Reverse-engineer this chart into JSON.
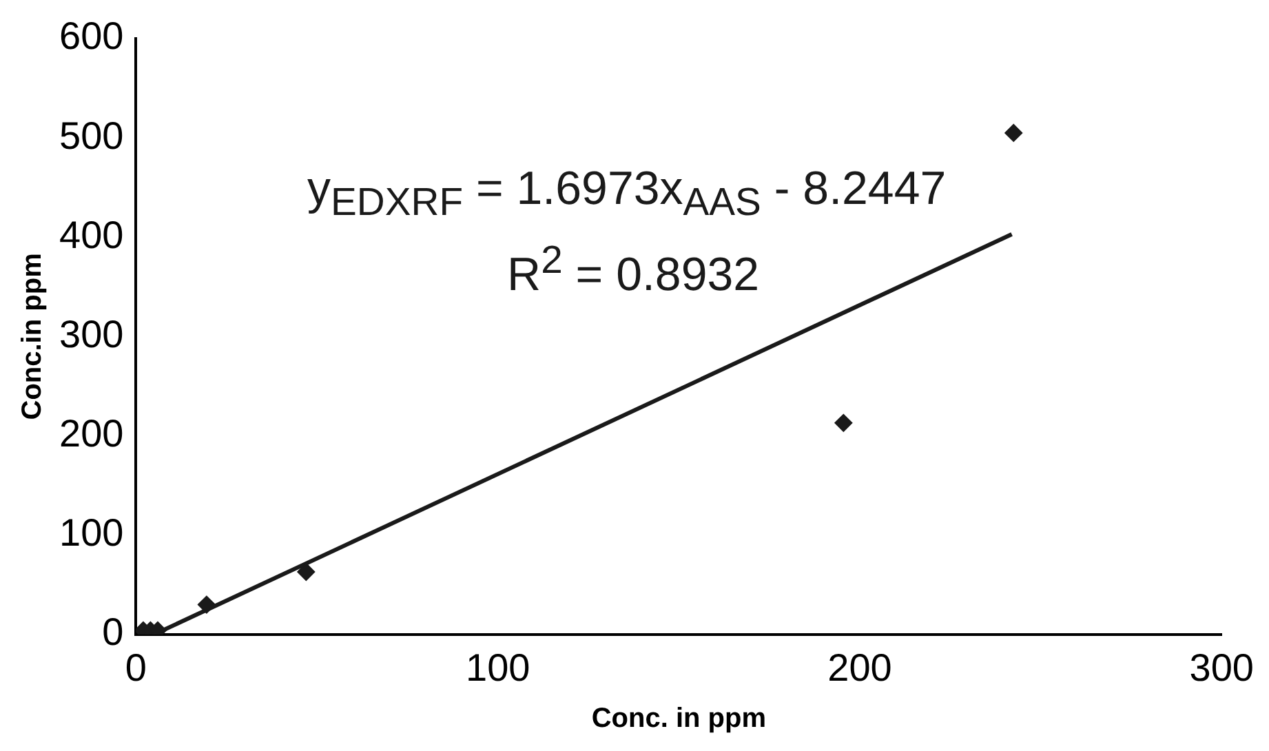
{
  "chart_data": {
    "type": "scatter",
    "xlabel": "Conc. in ppm",
    "ylabel": "Conc.in ppm",
    "xlim": [
      0,
      300
    ],
    "xticks": [
      0,
      100,
      200,
      300
    ],
    "ylim": [
      0,
      600
    ],
    "yticks": [
      0,
      100,
      200,
      300,
      400,
      500,
      600
    ],
    "grid": false,
    "legend": false,
    "marker": "diamond",
    "annotations": [
      "y$_{EDXRF}$ = 1.6973x$_{AAS}$ - 8.2447",
      "R$^{2}$ = 0.8932"
    ],
    "series": [
      {
        "type": "scatter",
        "color": "#1a1a1a",
        "x": [
          2,
          4,
          6,
          19.5,
          47,
          195.5,
          242.5
        ],
        "values": [
          4,
          4,
          4,
          30,
          63,
          213,
          505
        ]
      },
      {
        "type": "line",
        "color": "#1a1a1a",
        "marker": "none",
        "line_style": "solid",
        "x": [
          5,
          242
        ],
        "values": [
          0,
          403
        ]
      }
    ]
  }
}
